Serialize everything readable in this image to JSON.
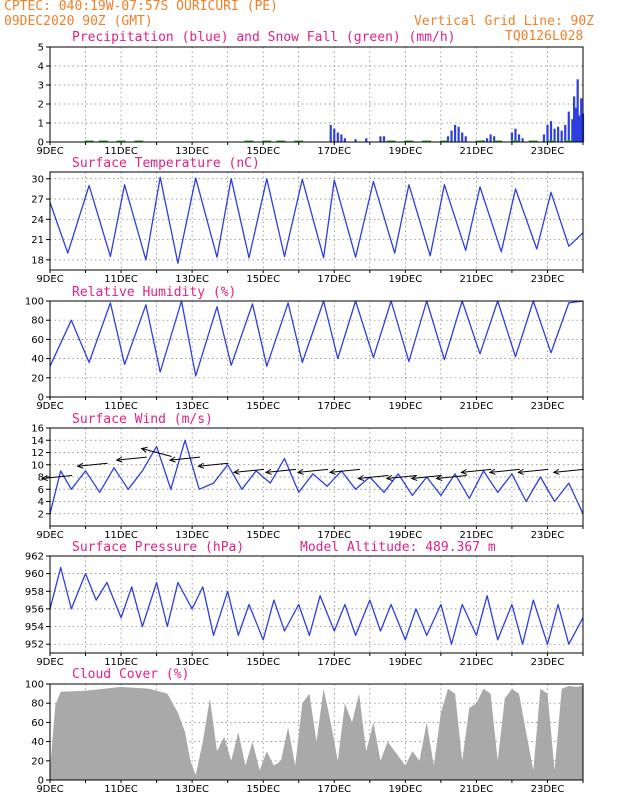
{
  "header": {
    "station_line": "CPTEC:  040:19W-07:57S  OURICURI (PE)",
    "date_line": "09DEC2020 90Z (GMT)",
    "grid_line": "Vertical Grid Line: 90Z",
    "code": "TQ0126L028"
  },
  "colors": {
    "header": "#f07f2a",
    "title": "#e0218a",
    "line": "#2d3fe0",
    "snow": "#22aa22",
    "cloud": "#a9a9a9",
    "axis": "#000000"
  },
  "chart_data": [
    {
      "id": "precip",
      "type": "bar",
      "title": "Precipitation (blue) and Snow Fall (green) (mm/h)",
      "x_ticks": [
        "9DEC",
        "11DEC",
        "13DEC",
        "15DEC",
        "17DEC",
        "19DEC",
        "21DEC",
        "23DEC"
      ],
      "x_range_days": [
        9,
        24
      ],
      "ylim": [
        0,
        5
      ],
      "y_ticks": [
        0,
        1,
        2,
        3,
        4,
        5
      ],
      "grid": true,
      "series": [
        {
          "name": "Precipitation",
          "x": [
            16.9,
            17.0,
            17.1,
            17.2,
            17.3,
            17.6,
            17.9,
            18.3,
            18.4,
            20.2,
            20.3,
            20.4,
            20.5,
            20.6,
            20.7,
            21.2,
            21.3,
            21.4,
            21.5,
            22.0,
            22.1,
            22.2,
            22.3,
            22.9,
            23.0,
            23.1,
            23.2,
            23.3,
            23.4,
            23.5,
            23.6,
            23.7,
            23.75,
            23.8,
            23.85,
            23.9,
            23.95,
            24.0
          ],
          "values": [
            0.9,
            0.7,
            0.5,
            0.4,
            0.2,
            0.15,
            0.2,
            0.3,
            0.3,
            0.3,
            0.6,
            0.9,
            0.8,
            0.5,
            0.3,
            0.1,
            0.2,
            0.4,
            0.3,
            0.5,
            0.7,
            0.4,
            0.2,
            0.4,
            0.9,
            1.1,
            0.7,
            0.8,
            0.6,
            0.9,
            1.6,
            1.2,
            2.4,
            1.8,
            3.3,
            1.4,
            2.3,
            1.5
          ]
        },
        {
          "name": "Snow Fall",
          "x": [
            10.1,
            10.5,
            11.0,
            11.5,
            14.6,
            15.1,
            15.5,
            16.0,
            18.6,
            19.1,
            19.6,
            20.1,
            21.1,
            21.6,
            22.1,
            22.6,
            23.1,
            23.6
          ],
          "values": [
            0.05,
            0.05,
            0.05,
            0.05,
            0.05,
            0.05,
            0.05,
            0.05,
            0.05,
            0.05,
            0.05,
            0.05,
            0.05,
            0.05,
            0.05,
            0.05,
            0.05,
            0.05
          ]
        }
      ]
    },
    {
      "id": "temp",
      "type": "line",
      "title": "Surface Temperature (nC)",
      "x_ticks": [
        "9DEC",
        "11DEC",
        "13DEC",
        "15DEC",
        "17DEC",
        "19DEC",
        "21DEC",
        "23DEC"
      ],
      "x_range_days": [
        9,
        24
      ],
      "ylim": [
        16.5,
        31
      ],
      "y_ticks": [
        18,
        21,
        24,
        27,
        30
      ],
      "grid": true,
      "series": [
        {
          "name": "",
          "x": [
            9.0,
            9.5,
            10.1,
            10.7,
            11.1,
            11.7,
            12.1,
            12.6,
            13.1,
            13.7,
            14.1,
            14.6,
            15.1,
            15.6,
            16.1,
            16.7,
            17.0,
            17.6,
            18.1,
            18.7,
            19.1,
            19.7,
            20.1,
            20.7,
            21.1,
            21.7,
            22.1,
            22.7,
            23.1,
            23.6,
            24.0
          ],
          "values": [
            26.5,
            19.0,
            29.0,
            18.5,
            29.1,
            18.0,
            30.2,
            17.5,
            30.1,
            18.4,
            30.0,
            18.3,
            30.0,
            18.5,
            29.9,
            18.3,
            29.8,
            18.4,
            29.6,
            19.0,
            29.1,
            18.6,
            29.1,
            19.4,
            28.8,
            19.2,
            28.5,
            19.6,
            28.0,
            20.0,
            22.0
          ]
        }
      ]
    },
    {
      "id": "rh",
      "type": "line",
      "title": "Relative Humidity (%)",
      "x_ticks": [
        "9DEC",
        "11DEC",
        "13DEC",
        "15DEC",
        "17DEC",
        "19DEC",
        "21DEC",
        "23DEC"
      ],
      "x_range_days": [
        9,
        24
      ],
      "ylim": [
        0,
        100
      ],
      "y_ticks": [
        0,
        20,
        40,
        60,
        80,
        100
      ],
      "grid": true,
      "series": [
        {
          "name": "",
          "x": [
            9.0,
            9.6,
            10.1,
            10.7,
            11.1,
            11.7,
            12.1,
            12.7,
            13.1,
            13.7,
            14.1,
            14.7,
            15.1,
            15.7,
            16.1,
            16.7,
            17.1,
            17.6,
            18.1,
            18.6,
            19.1,
            19.6,
            20.1,
            20.6,
            21.1,
            21.6,
            22.1,
            22.6,
            23.1,
            23.6,
            24.0
          ],
          "values": [
            32,
            80,
            36,
            98,
            34,
            96,
            26,
            100,
            22,
            94,
            33,
            97,
            32,
            98,
            36,
            100,
            40,
            100,
            41,
            100,
            37,
            100,
            39,
            100,
            45,
            100,
            42,
            100,
            46,
            98,
            100
          ]
        }
      ]
    },
    {
      "id": "wind",
      "type": "line",
      "title": "Surface Wind (m/s)",
      "x_ticks": [
        "9DEC",
        "11DEC",
        "13DEC",
        "15DEC",
        "17DEC",
        "19DEC",
        "21DEC",
        "23DEC"
      ],
      "x_range_days": [
        9,
        24
      ],
      "ylim": [
        0,
        16
      ],
      "y_ticks": [
        2,
        4,
        6,
        8,
        10,
        12,
        14,
        16
      ],
      "grid": true,
      "series": [
        {
          "name": "",
          "x": [
            9.0,
            9.3,
            9.6,
            10.0,
            10.4,
            10.8,
            11.2,
            11.6,
            12.0,
            12.4,
            12.8,
            13.2,
            13.6,
            14.0,
            14.4,
            14.8,
            15.2,
            15.6,
            16.0,
            16.4,
            16.8,
            17.2,
            17.6,
            18.0,
            18.4,
            18.8,
            19.2,
            19.6,
            20.0,
            20.4,
            20.8,
            21.2,
            21.6,
            22.0,
            22.4,
            22.8,
            23.2,
            23.6,
            24.0
          ],
          "values": [
            2,
            9,
            6,
            9,
            5.5,
            9.5,
            6,
            9,
            13,
            6,
            14,
            6,
            7,
            10,
            6,
            9,
            7,
            11,
            5.5,
            8.5,
            6.5,
            9,
            6,
            8,
            5.5,
            8.5,
            5,
            8,
            5,
            8.5,
            4.5,
            9,
            5.5,
            8.5,
            4,
            8,
            4,
            7,
            2
          ]
        }
      ],
      "wind_arrows": {
        "x": [
          9.2,
          10.2,
          11.3,
          12.0,
          12.8,
          13.6,
          14.6,
          15.5,
          16.4,
          17.3,
          18.1,
          18.9,
          19.6,
          20.3,
          21.0,
          21.8,
          22.6,
          23.6
        ],
        "speed": [
          8,
          10,
          11,
          12,
          11,
          10,
          9,
          9,
          9,
          9,
          8,
          8,
          8,
          8,
          9,
          9,
          9,
          9
        ],
        "toward": [
          "W",
          "W",
          "W",
          "WNW",
          "W",
          "W",
          "W",
          "W",
          "W",
          "W",
          "W",
          "W",
          "W",
          "W",
          "W",
          "W",
          "W",
          "W"
        ]
      }
    },
    {
      "id": "pressure",
      "type": "line",
      "title": "Surface Pressure (hPa)",
      "subtitle": "Model Altitude: 489.367 m",
      "x_ticks": [
        "9DEC",
        "11DEC",
        "13DEC",
        "15DEC",
        "17DEC",
        "19DEC",
        "21DEC",
        "23DEC"
      ],
      "x_range_days": [
        9,
        24
      ],
      "ylim": [
        951,
        962
      ],
      "y_ticks": [
        952,
        954,
        956,
        958,
        960,
        962
      ],
      "grid": true,
      "series": [
        {
          "name": "",
          "x": [
            9.0,
            9.3,
            9.6,
            10.0,
            10.3,
            10.6,
            11.0,
            11.3,
            11.6,
            12.0,
            12.3,
            12.6,
            13.0,
            13.3,
            13.6,
            14.0,
            14.3,
            14.6,
            15.0,
            15.3,
            15.6,
            16.0,
            16.3,
            16.6,
            17.0,
            17.3,
            17.6,
            18.0,
            18.3,
            18.6,
            19.0,
            19.3,
            19.6,
            20.0,
            20.3,
            20.6,
            21.0,
            21.3,
            21.6,
            22.0,
            22.3,
            22.6,
            23.0,
            23.3,
            23.6,
            24.0
          ],
          "values": [
            956,
            960.7,
            956,
            960,
            957,
            959,
            955,
            958.5,
            954,
            959,
            954,
            959,
            956,
            958.5,
            953,
            958,
            953,
            956.5,
            952.5,
            957,
            953.5,
            956.5,
            953,
            957.5,
            953.5,
            956.5,
            953,
            957,
            953.5,
            956.5,
            952.5,
            956,
            953,
            956.5,
            952,
            956.5,
            953,
            957.5,
            952.5,
            956.5,
            952,
            957,
            952,
            956.5,
            952,
            955
          ]
        }
      ]
    },
    {
      "id": "cloud",
      "type": "area",
      "title": "Cloud Cover (%)",
      "x_ticks": [
        "9DEC",
        "11DEC",
        "13DEC",
        "15DEC",
        "17DEC",
        "19DEC",
        "21DEC",
        "23DEC"
      ],
      "x_range_days": [
        9,
        24
      ],
      "ylim": [
        0,
        100
      ],
      "y_ticks": [
        0,
        20,
        40,
        60,
        80,
        100
      ],
      "grid": true,
      "series": [
        {
          "name": "",
          "x": [
            9.0,
            9.15,
            9.3,
            10.0,
            11.0,
            11.8,
            12.3,
            12.6,
            12.8,
            12.95,
            13.1,
            13.3,
            13.5,
            13.7,
            13.9,
            14.1,
            14.3,
            14.5,
            14.7,
            14.9,
            15.1,
            15.3,
            15.5,
            15.7,
            15.9,
            16.1,
            16.3,
            16.5,
            16.7,
            16.9,
            17.1,
            17.3,
            17.5,
            17.7,
            17.9,
            18.1,
            18.3,
            18.5,
            18.7,
            18.9,
            19.0,
            19.2,
            19.4,
            19.6,
            19.8,
            20.0,
            20.2,
            20.4,
            20.6,
            20.8,
            21.0,
            21.2,
            21.4,
            21.6,
            21.8,
            22.0,
            22.2,
            22.4,
            22.6,
            22.8,
            23.0,
            23.2,
            23.4,
            23.6,
            23.8,
            24.0
          ],
          "values": [
            10,
            78,
            92,
            93,
            97,
            95,
            90,
            70,
            50,
            20,
            5,
            40,
            85,
            30,
            45,
            20,
            50,
            15,
            40,
            10,
            30,
            15,
            20,
            55,
            15,
            80,
            90,
            40,
            95,
            60,
            20,
            80,
            60,
            90,
            30,
            60,
            20,
            40,
            30,
            20,
            15,
            30,
            20,
            60,
            15,
            70,
            95,
            90,
            20,
            75,
            80,
            95,
            90,
            20,
            85,
            95,
            90,
            50,
            10,
            95,
            90,
            10,
            95,
            98,
            97,
            98
          ]
        }
      ]
    }
  ]
}
